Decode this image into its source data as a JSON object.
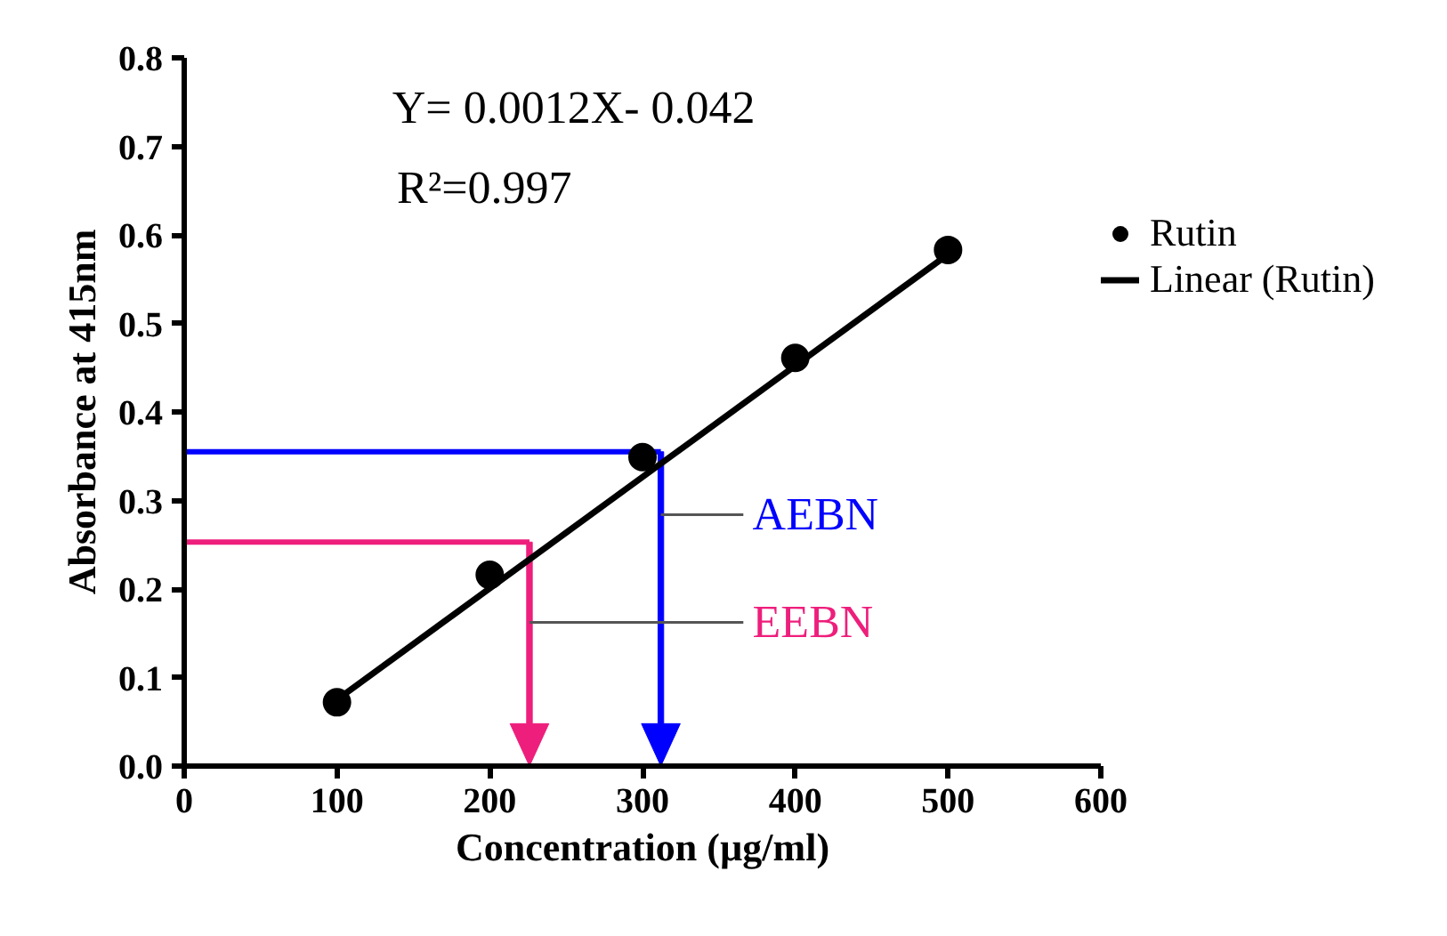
{
  "chart_data": {
    "type": "scatter",
    "xlabel": "Concentration (µg/ml)",
    "ylabel": "Absorbance at 415nm",
    "xlim": [
      0,
      600
    ],
    "xticks": [
      0,
      100,
      200,
      300,
      400,
      500,
      600
    ],
    "ylim": [
      0,
      0.8
    ],
    "yticks": [
      {
        "value": 0,
        "label": "0.0"
      },
      0.1,
      0.2,
      0.3,
      0.4,
      0.5,
      0.6,
      0.7,
      0.8
    ],
    "grid": false,
    "legend": "right",
    "annotations": [
      "Y= 0.0012X- 0.042",
      "R²=0.997"
    ],
    "ref_lines": [
      {
        "axis": "y",
        "value": 0.355,
        "color": "#0000ff"
      },
      {
        "axis": "x",
        "value": 312,
        "label": "AEBN",
        "color": "#0000ff"
      },
      {
        "axis": "y",
        "value": 0.253,
        "color": "#ee1e7c"
      },
      {
        "axis": "x",
        "value": 226,
        "label": "EEBN",
        "color": "#ee1e7c"
      }
    ],
    "series": [
      {
        "name": "Rutin",
        "color": "#000000",
        "x": [
          100,
          200,
          300,
          400,
          500
        ],
        "values": [
          0.072,
          0.216,
          0.349,
          0.461,
          0.583
        ]
      },
      {
        "name": "Linear (Rutin)",
        "color": "#000000",
        "type": "line",
        "x": [
          100,
          500
        ],
        "values": [
          0.075,
          0.578
        ]
      }
    ]
  }
}
